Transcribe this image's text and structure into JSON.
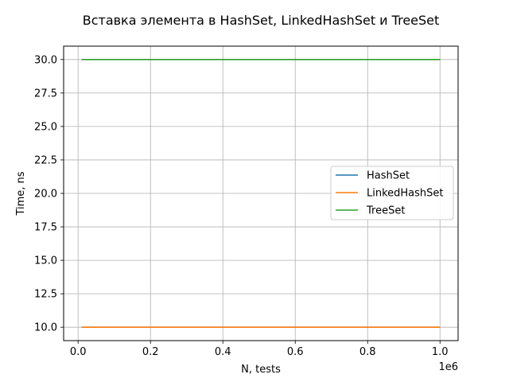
{
  "chart_data": {
    "type": "line",
    "title": "Вставка элемента в HashSet, LinkedHashSet и TreeSet",
    "xlabel": "N, tests",
    "ylabel": "Time, ns",
    "x_offset_label": "1e6",
    "x_scale_factor": 1000000,
    "xlim": [
      -40000,
      1050000
    ],
    "ylim": [
      9.0,
      31.0
    ],
    "x_ticks": [
      0,
      200000,
      400000,
      600000,
      800000,
      1000000
    ],
    "x_tick_labels": [
      "0.0",
      "0.2",
      "0.4",
      "0.6",
      "0.8",
      "1.0"
    ],
    "y_ticks": [
      10.0,
      12.5,
      15.0,
      17.5,
      20.0,
      22.5,
      25.0,
      27.5,
      30.0
    ],
    "y_tick_labels": [
      "10.0",
      "12.5",
      "15.0",
      "17.5",
      "20.0",
      "22.5",
      "25.0",
      "27.5",
      "30.0"
    ],
    "grid": true,
    "legend_position": "center-right",
    "series": [
      {
        "name": "HashSet",
        "color": "#1f77b4",
        "x": [
          10000,
          1000000
        ],
        "y": [
          10,
          10
        ]
      },
      {
        "name": "LinkedHashSet",
        "color": "#ff7f0e",
        "x": [
          10000,
          1000000
        ],
        "y": [
          10,
          10
        ]
      },
      {
        "name": "TreeSet",
        "color": "#2ca02c",
        "x": [
          10000,
          1000000
        ],
        "y": [
          30,
          30
        ]
      }
    ]
  }
}
